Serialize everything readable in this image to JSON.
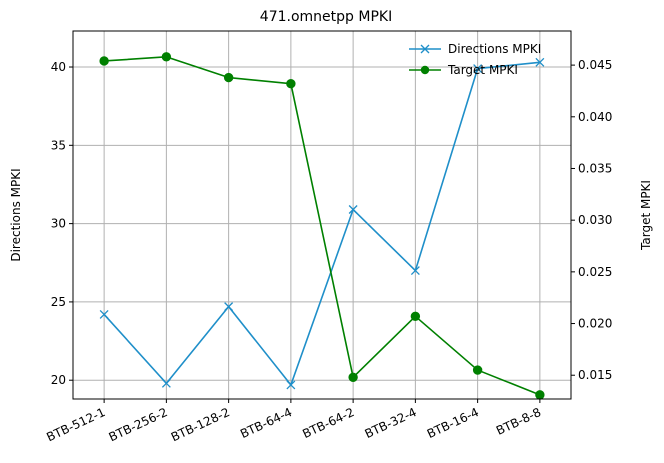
{
  "chart_data": {
    "type": "line",
    "title": "471.omnetpp MPKI",
    "categories": [
      "BTB-512-1",
      "BTB-256-2",
      "BTB-128-2",
      "BTB-64-4",
      "BTB-64-2",
      "BTB-32-4",
      "BTB-16-4",
      "BTB-8-8"
    ],
    "ylabel_left": "Directions MPKI",
    "ylabel_right": "Target MPKI",
    "ylim_left": [
      18.8,
      42.3
    ],
    "ylim_right": [
      0.0127,
      0.0483
    ],
    "yticks_left": [
      20,
      25,
      30,
      35,
      40
    ],
    "yticks_left_labels": [
      "20",
      "25",
      "30",
      "35",
      "40"
    ],
    "yticks_right": [
      0.015,
      0.02,
      0.025,
      0.03,
      0.035,
      0.04,
      0.045
    ],
    "yticks_right_labels": [
      "0.015",
      "0.020",
      "0.025",
      "0.030",
      "0.035",
      "0.040",
      "0.045"
    ],
    "grid": true,
    "legend_position": "top-right",
    "series": [
      {
        "name": "Directions MPKI",
        "axis": "left",
        "marker": "x",
        "color": "#1f8fc9",
        "values": [
          24.2,
          19.8,
          24.7,
          19.7,
          30.9,
          27.0,
          39.9,
          40.3
        ]
      },
      {
        "name": "Target MPKI",
        "axis": "right",
        "marker": "circle",
        "color": "#008000",
        "values": [
          0.0454,
          0.0458,
          0.0438,
          0.0432,
          0.0148,
          0.0207,
          0.0155,
          0.0131
        ]
      }
    ]
  }
}
